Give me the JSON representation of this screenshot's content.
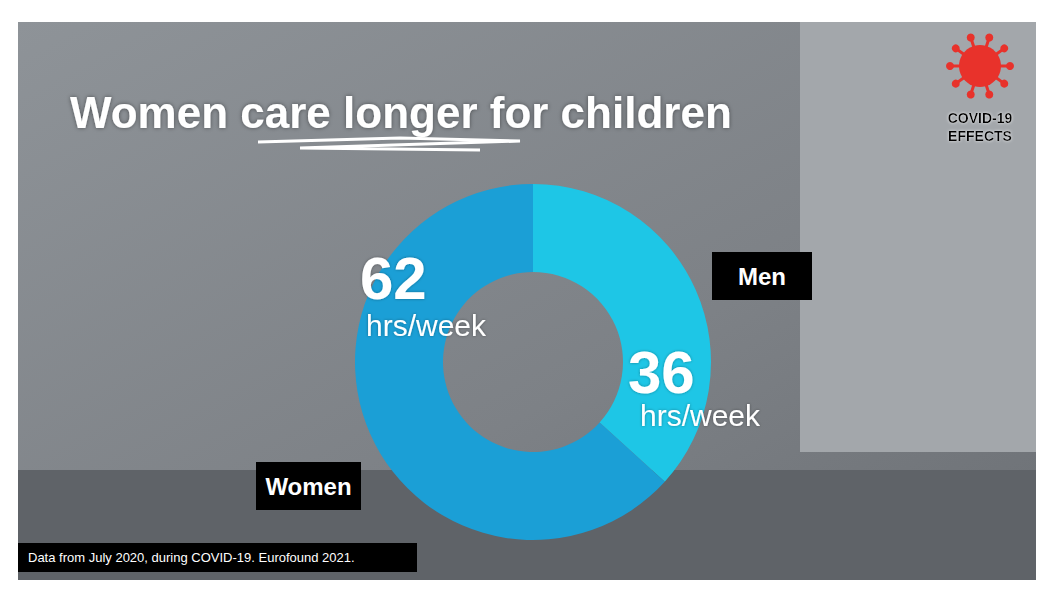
{
  "chart_data": {
    "type": "donut",
    "title": "Women care longer for children",
    "categories": [
      "Men",
      "Women"
    ],
    "values": [
      36,
      62
    ],
    "value_labels": [
      "36 hrs/week",
      "62 hrs/week"
    ],
    "colors": [
      "#1ec6e6",
      "#1b9fd6"
    ],
    "data_labels": true,
    "legend": false,
    "annotations": [
      "Data from July 2020, during COVID-19. Eurofound 2021.",
      "COVID-19 EFFECTS"
    ]
  }
}
